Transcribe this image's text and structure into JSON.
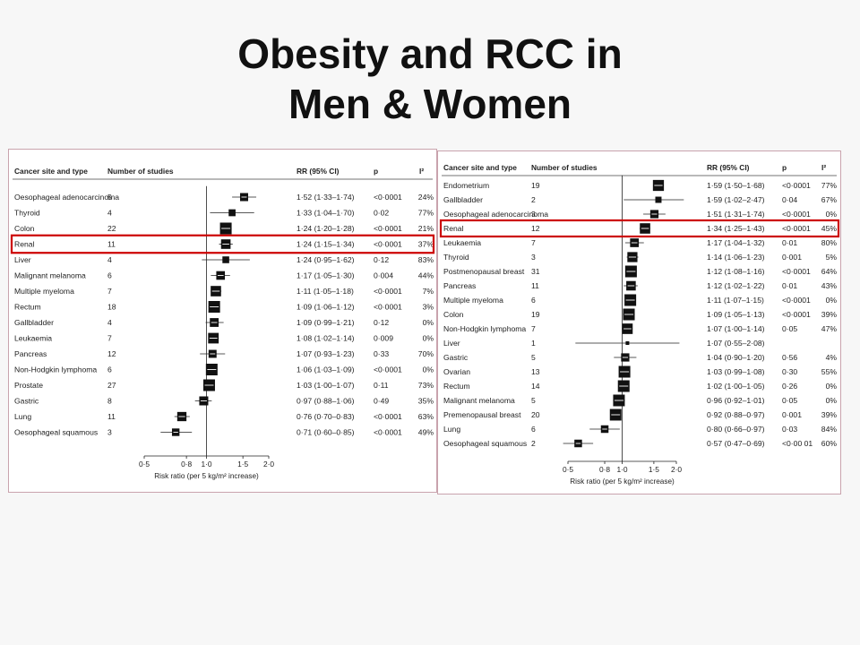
{
  "slide": {
    "title_line1": "Obesity and RCC in",
    "title_line2": "Men & Women"
  },
  "colors": {
    "highlight": "#cc0000",
    "marker": "#111111",
    "panel_border": "#c9a3ad"
  },
  "chart_data": [
    {
      "type": "forest",
      "title": "",
      "columns": [
        "Cancer site and type",
        "Number of studies",
        "RR (95% CI)",
        "p",
        "I²"
      ],
      "xlabel": "Risk ratio (per 5 kg/m² increase)",
      "x_scale": "log",
      "xlim": [
        0.5,
        2.0
      ],
      "xticks": [
        {
          "v": 0.5,
          "label": "0·5"
        },
        {
          "v": 0.8,
          "label": "0·8"
        },
        {
          "v": 1.0,
          "label": "1·0"
        },
        {
          "v": 1.5,
          "label": "1·5"
        },
        {
          "v": 2.0,
          "label": "2·0"
        }
      ],
      "reference_line": 1.0,
      "highlight_row": "Renal",
      "rows": [
        {
          "site": "Oesophageal adenocarcinoma",
          "n": "5",
          "rr": 1.52,
          "lo": 1.33,
          "hi": 1.74,
          "rr_text": "1·52 (1·33–1·74)",
          "p": "<0·0001",
          "i2": "24%"
        },
        {
          "site": "Thyroid",
          "n": "4",
          "rr": 1.33,
          "lo": 1.04,
          "hi": 1.7,
          "rr_text": "1·33 (1·04–1·70)",
          "p": "0·02",
          "i2": "77%"
        },
        {
          "site": "Colon",
          "n": "22",
          "rr": 1.24,
          "lo": 1.2,
          "hi": 1.28,
          "rr_text": "1·24 (1·20–1·28)",
          "p": "<0·0001",
          "i2": "21%"
        },
        {
          "site": "Renal",
          "n": "11",
          "rr": 1.24,
          "lo": 1.15,
          "hi": 1.34,
          "rr_text": "1·24 (1·15–1·34)",
          "p": "<0·0001",
          "i2": "37%"
        },
        {
          "site": "Liver",
          "n": "4",
          "rr": 1.24,
          "lo": 0.95,
          "hi": 1.62,
          "rr_text": "1·24 (0·95–1·62)",
          "p": "0·12",
          "i2": "83%"
        },
        {
          "site": "Malignant melanoma",
          "n": "6",
          "rr": 1.17,
          "lo": 1.05,
          "hi": 1.3,
          "rr_text": "1·17 (1·05–1·30)",
          "p": "0·004",
          "i2": "44%"
        },
        {
          "site": "Multiple myeloma",
          "n": "7",
          "rr": 1.11,
          "lo": 1.05,
          "hi": 1.18,
          "rr_text": "1·11 (1·05–1·18)",
          "p": "<0·0001",
          "i2": "7%"
        },
        {
          "site": "Rectum",
          "n": "18",
          "rr": 1.09,
          "lo": 1.06,
          "hi": 1.12,
          "rr_text": "1·09 (1·06–1·12)",
          "p": "<0·0001",
          "i2": "3%"
        },
        {
          "site": "Gallbladder",
          "n": "4",
          "rr": 1.09,
          "lo": 0.99,
          "hi": 1.21,
          "rr_text": "1·09 (0·99–1·21)",
          "p": "0·12",
          "i2": "0%"
        },
        {
          "site": "Leukaemia",
          "n": "7",
          "rr": 1.08,
          "lo": 1.02,
          "hi": 1.14,
          "rr_text": "1·08 (1·02–1·14)",
          "p": "0·009",
          "i2": "0%"
        },
        {
          "site": "Pancreas",
          "n": "12",
          "rr": 1.07,
          "lo": 0.93,
          "hi": 1.23,
          "rr_text": "1·07 (0·93–1·23)",
          "p": "0·33",
          "i2": "70%"
        },
        {
          "site": "Non-Hodgkin lymphoma",
          "n": "6",
          "rr": 1.06,
          "lo": 1.03,
          "hi": 1.09,
          "rr_text": "1·06 (1·03–1·09)",
          "p": "<0·0001",
          "i2": "0%"
        },
        {
          "site": "Prostate",
          "n": "27",
          "rr": 1.03,
          "lo": 1.0,
          "hi": 1.07,
          "rr_text": "1·03 (1·00–1·07)",
          "p": "0·11",
          "i2": "73%"
        },
        {
          "site": "Gastric",
          "n": "8",
          "rr": 0.97,
          "lo": 0.88,
          "hi": 1.06,
          "rr_text": "0·97 (0·88–1·06)",
          "p": "0·49",
          "i2": "35%"
        },
        {
          "site": "Lung",
          "n": "11",
          "rr": 0.76,
          "lo": 0.7,
          "hi": 0.83,
          "rr_text": "0·76 (0·70–0·83)",
          "p": "<0·0001",
          "i2": "63%"
        },
        {
          "site": "Oesophageal squamous",
          "n": "3",
          "rr": 0.71,
          "lo": 0.6,
          "hi": 0.85,
          "rr_text": "0·71 (0·60–0·85)",
          "p": "<0·0001",
          "i2": "49%"
        }
      ]
    },
    {
      "type": "forest",
      "title": "",
      "columns": [
        "Cancer site and type",
        "Number of studies",
        "RR (95% CI)",
        "p",
        "I²"
      ],
      "xlabel": "Risk ratio (per 5 kg/m² increase)",
      "x_scale": "log",
      "xlim": [
        0.5,
        2.0
      ],
      "xticks": [
        {
          "v": 0.5,
          "label": "0·5"
        },
        {
          "v": 0.8,
          "label": "0·8"
        },
        {
          "v": 1.0,
          "label": "1·0"
        },
        {
          "v": 1.5,
          "label": "1·5"
        },
        {
          "v": 2.0,
          "label": "2·0"
        }
      ],
      "reference_line": 1.0,
      "highlight_row": "Renal",
      "rows": [
        {
          "site": "Endometrium",
          "n": "19",
          "rr": 1.59,
          "lo": 1.5,
          "hi": 1.68,
          "rr_text": "1·59 (1·50–1·68)",
          "p": "<0·0001",
          "i2": "77%"
        },
        {
          "site": "Gallbladder",
          "n": "2",
          "rr": 1.59,
          "lo": 1.02,
          "hi": 2.47,
          "rr_text": "1·59 (1·02–2·47)",
          "p": "0·04",
          "i2": "67%"
        },
        {
          "site": "Oesophageal adenocarcinoma",
          "n": "3",
          "rr": 1.51,
          "lo": 1.31,
          "hi": 1.74,
          "rr_text": "1·51 (1·31–1·74)",
          "p": "<0·0001",
          "i2": "0%"
        },
        {
          "site": "Renal",
          "n": "12",
          "rr": 1.34,
          "lo": 1.25,
          "hi": 1.43,
          "rr_text": "1·34 (1·25–1·43)",
          "p": "<0·0001",
          "i2": "45%"
        },
        {
          "site": "Leukaemia",
          "n": "7",
          "rr": 1.17,
          "lo": 1.04,
          "hi": 1.32,
          "rr_text": "1·17 (1·04–1·32)",
          "p": "0·01",
          "i2": "80%"
        },
        {
          "site": "Thyroid",
          "n": "3",
          "rr": 1.14,
          "lo": 1.06,
          "hi": 1.23,
          "rr_text": "1·14 (1·06–1·23)",
          "p": "0·001",
          "i2": "5%"
        },
        {
          "site": "Postmenopausal breast",
          "n": "31",
          "rr": 1.12,
          "lo": 1.08,
          "hi": 1.16,
          "rr_text": "1·12 (1·08–1·16)",
          "p": "<0·0001",
          "i2": "64%"
        },
        {
          "site": "Pancreas",
          "n": "11",
          "rr": 1.12,
          "lo": 1.02,
          "hi": 1.22,
          "rr_text": "1·12 (1·02–1·22)",
          "p": "0·01",
          "i2": "43%"
        },
        {
          "site": "Multiple myeloma",
          "n": "6",
          "rr": 1.11,
          "lo": 1.07,
          "hi": 1.15,
          "rr_text": "1·11 (1·07–1·15)",
          "p": "<0·0001",
          "i2": "0%"
        },
        {
          "site": "Colon",
          "n": "19",
          "rr": 1.09,
          "lo": 1.05,
          "hi": 1.13,
          "rr_text": "1·09 (1·05–1·13)",
          "p": "<0·0001",
          "i2": "39%"
        },
        {
          "site": "Non-Hodgkin lymphoma",
          "n": "7",
          "rr": 1.07,
          "lo": 1.0,
          "hi": 1.14,
          "rr_text": "1·07 (1·00–1·14)",
          "p": "0·05",
          "i2": "47%"
        },
        {
          "site": "Liver",
          "n": "1",
          "rr": 1.07,
          "lo": 0.55,
          "hi": 2.08,
          "rr_text": "1·07 (0·55–2·08)",
          "p": "",
          "i2": ""
        },
        {
          "site": "Gastric",
          "n": "5",
          "rr": 1.04,
          "lo": 0.9,
          "hi": 1.2,
          "rr_text": "1·04 (0·90–1·20)",
          "p": "0·56",
          "i2": "4%"
        },
        {
          "site": "Ovarian",
          "n": "13",
          "rr": 1.03,
          "lo": 0.99,
          "hi": 1.08,
          "rr_text": "1·03 (0·99–1·08)",
          "p": "0·30",
          "i2": "55%"
        },
        {
          "site": "Rectum",
          "n": "14",
          "rr": 1.02,
          "lo": 1.0,
          "hi": 1.05,
          "rr_text": "1·02 (1·00–1·05)",
          "p": "0·26",
          "i2": "0%"
        },
        {
          "site": "Malignant melanoma",
          "n": "5",
          "rr": 0.96,
          "lo": 0.92,
          "hi": 1.01,
          "rr_text": "0·96 (0·92–1·01)",
          "p": "0·05",
          "i2": "0%"
        },
        {
          "site": "Premenopausal breast",
          "n": "20",
          "rr": 0.92,
          "lo": 0.88,
          "hi": 0.97,
          "rr_text": "0·92 (0·88–0·97)",
          "p": "0·001",
          "i2": "39%"
        },
        {
          "site": "Lung",
          "n": "6",
          "rr": 0.8,
          "lo": 0.66,
          "hi": 0.97,
          "rr_text": "0·80 (0·66–0·97)",
          "p": "0·03",
          "i2": "84%"
        },
        {
          "site": "Oesophageal squamous",
          "n": "2",
          "rr": 0.57,
          "lo": 0.47,
          "hi": 0.69,
          "rr_text": "0·57 (0·47–0·69)",
          "p": "<0·00 01",
          "i2": "60%"
        }
      ]
    }
  ]
}
